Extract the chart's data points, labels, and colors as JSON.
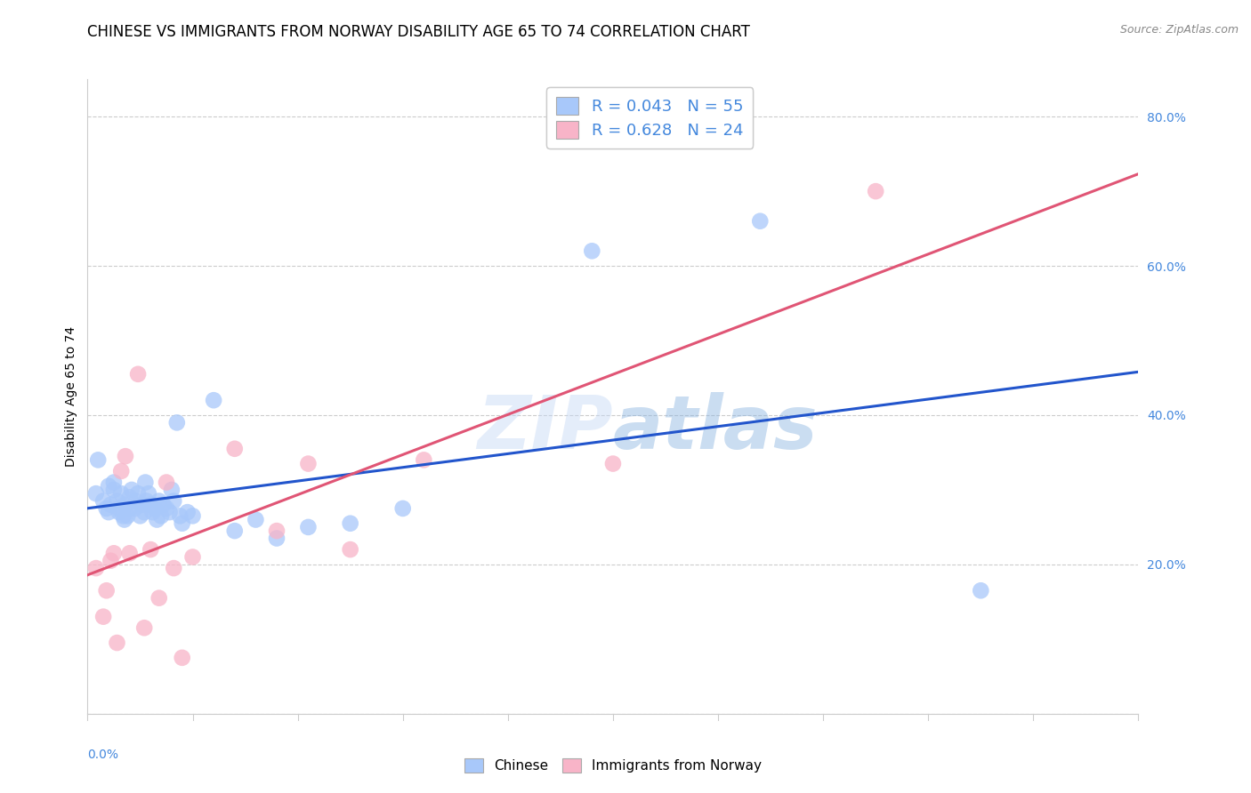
{
  "title": "CHINESE VS IMMIGRANTS FROM NORWAY DISABILITY AGE 65 TO 74 CORRELATION CHART",
  "source": "Source: ZipAtlas.com",
  "ylabel": "Disability Age 65 to 74",
  "xlim": [
    0.0,
    0.1
  ],
  "ylim": [
    0.0,
    0.85
  ],
  "chinese_color": "#a8c8fa",
  "norway_color": "#f8b4c8",
  "chinese_line_color": "#2255cc",
  "norway_line_color": "#e05575",
  "chinese_R": 0.043,
  "chinese_N": 55,
  "norway_R": 0.628,
  "norway_N": 24,
  "legend_label_1": "Chinese",
  "legend_label_2": "Immigrants from Norway",
  "watermark": "ZIPatlas",
  "chinese_x": [
    0.0008,
    0.001,
    0.0015,
    0.0018,
    0.002,
    0.002,
    0.0022,
    0.0025,
    0.0025,
    0.0028,
    0.003,
    0.003,
    0.0032,
    0.0034,
    0.0035,
    0.0036,
    0.0038,
    0.004,
    0.004,
    0.0042,
    0.0045,
    0.0046,
    0.0048,
    0.005,
    0.0052,
    0.0054,
    0.0055,
    0.0056,
    0.0058,
    0.006,
    0.0062,
    0.0064,
    0.0066,
    0.0068,
    0.007,
    0.0072,
    0.0075,
    0.0078,
    0.008,
    0.0082,
    0.0085,
    0.0088,
    0.009,
    0.0095,
    0.01,
    0.012,
    0.014,
    0.016,
    0.018,
    0.021,
    0.025,
    0.03,
    0.048,
    0.064,
    0.085
  ],
  "chinese_y": [
    0.295,
    0.34,
    0.285,
    0.275,
    0.27,
    0.305,
    0.28,
    0.3,
    0.31,
    0.285,
    0.27,
    0.275,
    0.295,
    0.265,
    0.26,
    0.28,
    0.265,
    0.29,
    0.275,
    0.3,
    0.275,
    0.285,
    0.295,
    0.265,
    0.28,
    0.27,
    0.31,
    0.285,
    0.295,
    0.28,
    0.27,
    0.275,
    0.26,
    0.285,
    0.265,
    0.28,
    0.275,
    0.27,
    0.3,
    0.285,
    0.39,
    0.265,
    0.255,
    0.27,
    0.265,
    0.42,
    0.245,
    0.26,
    0.235,
    0.25,
    0.255,
    0.275,
    0.62,
    0.66,
    0.165
  ],
  "norway_x": [
    0.0008,
    0.0015,
    0.0018,
    0.0022,
    0.0025,
    0.0028,
    0.0032,
    0.0036,
    0.004,
    0.0048,
    0.0054,
    0.006,
    0.0068,
    0.0075,
    0.0082,
    0.009,
    0.01,
    0.014,
    0.018,
    0.021,
    0.025,
    0.032,
    0.05,
    0.075
  ],
  "norway_y": [
    0.195,
    0.13,
    0.165,
    0.205,
    0.215,
    0.095,
    0.325,
    0.345,
    0.215,
    0.455,
    0.115,
    0.22,
    0.155,
    0.31,
    0.195,
    0.075,
    0.21,
    0.355,
    0.245,
    0.335,
    0.22,
    0.34,
    0.335,
    0.7
  ],
  "background_color": "#ffffff",
  "grid_color": "#cccccc",
  "axis_color": "#cccccc",
  "tick_color": "#4488dd",
  "title_fontsize": 12,
  "label_fontsize": 10,
  "legend_fontsize": 13,
  "source_fontsize": 9
}
